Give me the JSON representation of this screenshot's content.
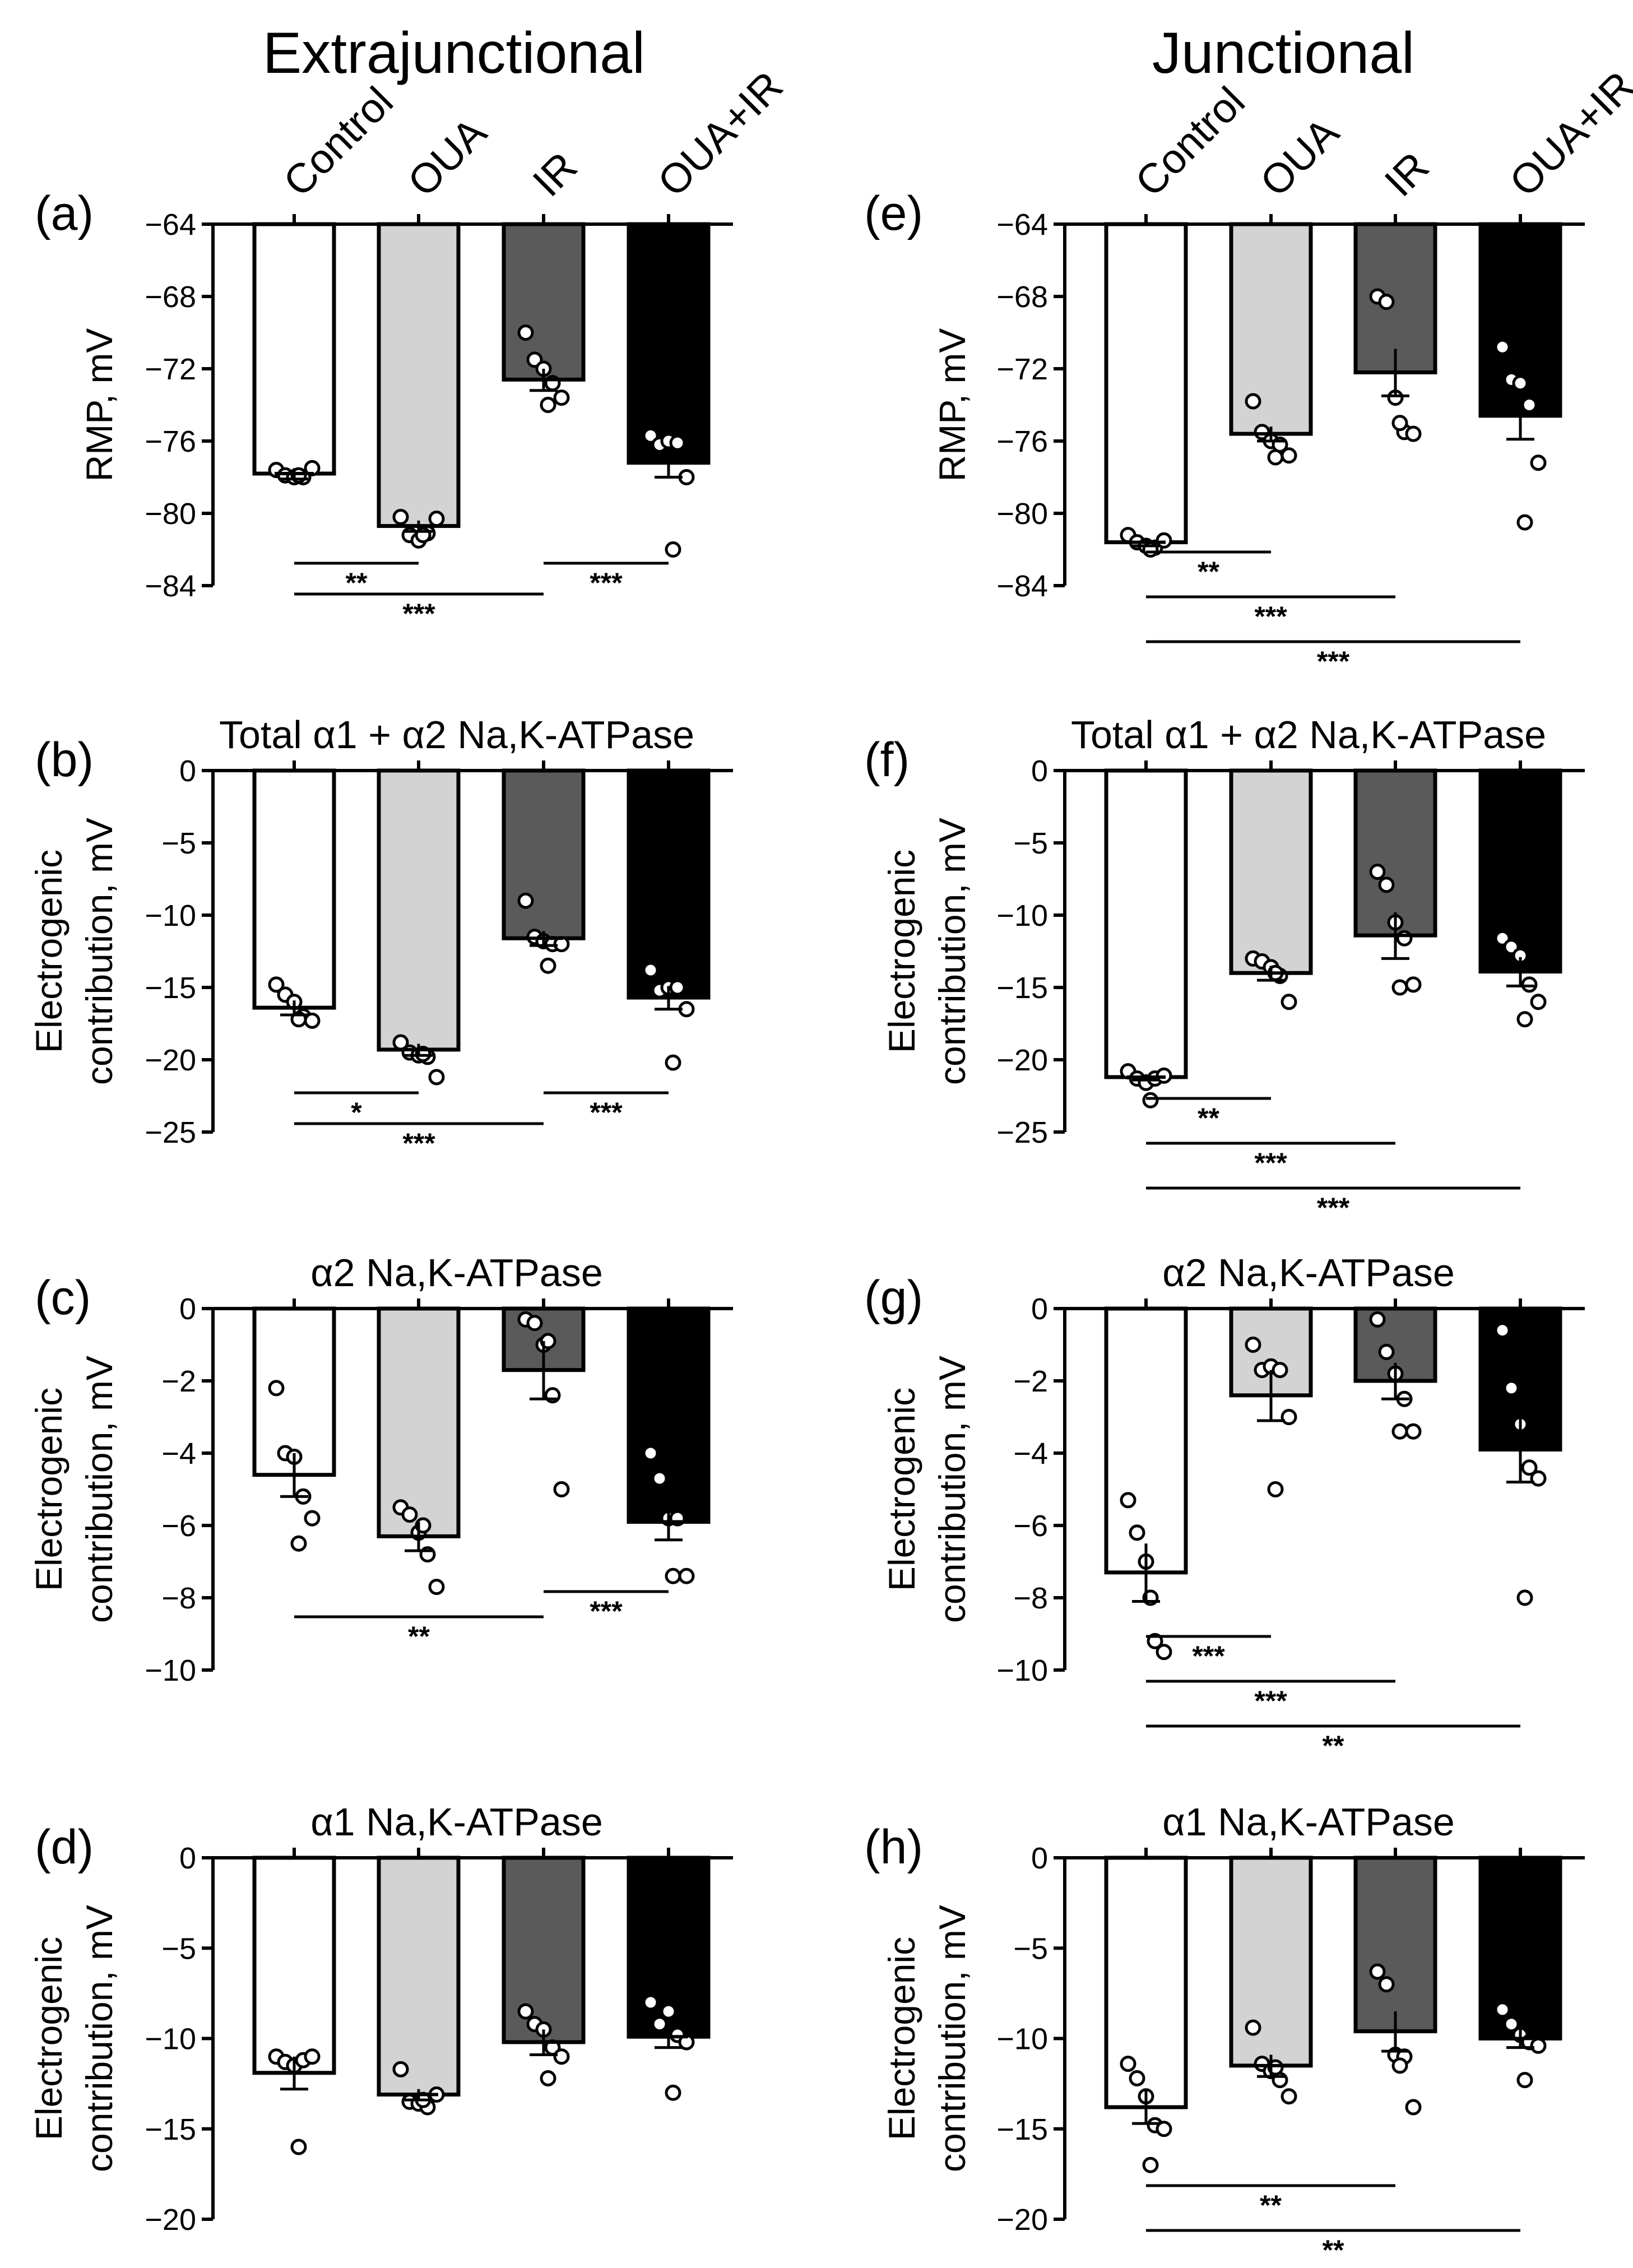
{
  "colors": {
    "Control": "#ffffff",
    "OUA": "#d3d3d3",
    "IR": "#5a5a5a",
    "OUA+IR": "#000000",
    "axis": "#000000"
  },
  "columns": [
    "Extrajunctional",
    "Junctional"
  ],
  "conditions": [
    "Control",
    "OUA",
    "IR",
    "OUA+IR"
  ],
  "chart_data": [
    {
      "id": "a",
      "letter": "(a)",
      "column": "Extrajunctional",
      "type": "bar",
      "title": "",
      "ylabel": [
        "RMP, mV"
      ],
      "ylim": [
        -84,
        -64
      ],
      "yticks": [
        -64,
        -68,
        -72,
        -76,
        -80,
        -84
      ],
      "categories": [
        "Control",
        "OUA",
        "IR",
        "OUA+IR"
      ],
      "values": [
        -77.8,
        -80.7,
        -72.6,
        -77.2
      ],
      "sem": [
        0.3,
        0.3,
        0.6,
        0.8
      ],
      "points": [
        [
          -77.6,
          -77.9,
          -78.0,
          -78.0,
          -77.5,
          -77.9
        ],
        [
          -80.2,
          -81.2,
          -81.5,
          -81.1,
          -80.3,
          -81.2
        ],
        [
          -70.0,
          -71.5,
          -72.0,
          -72.8,
          -73.6,
          -74.0
        ],
        [
          -75.7,
          -76.2,
          -76.0,
          -76.1,
          -78.0,
          -82.0
        ]
      ],
      "sig": [
        {
          "from": "Control",
          "to": "OUA",
          "label": "**"
        },
        {
          "from": "Control",
          "to": "IR",
          "label": "***"
        },
        {
          "from": "IR",
          "to": "OUA+IR",
          "label": "***"
        }
      ]
    },
    {
      "id": "b",
      "letter": "(b)",
      "column": "Extrajunctional",
      "type": "bar",
      "title": "Total α1 + α2 Na,K-ATPase",
      "ylabel": [
        "Electrogenic",
        "contribution, mV"
      ],
      "ylim": [
        -25,
        0
      ],
      "yticks": [
        0,
        -5,
        -10,
        -15,
        -20,
        -25
      ],
      "categories": [
        "Control",
        "OUA",
        "IR",
        "OUA+IR"
      ],
      "values": [
        -16.4,
        -19.3,
        -11.6,
        -15.7
      ],
      "sem": [
        0.5,
        0.4,
        0.5,
        0.8
      ],
      "points": [
        [
          -14.8,
          -15.5,
          -16.0,
          -17.0,
          -17.3,
          -17.2
        ],
        [
          -18.8,
          -19.5,
          -19.7,
          -19.8,
          -21.2,
          -19.6
        ],
        [
          -9.0,
          -11.5,
          -11.8,
          -12.0,
          -12.0,
          -13.5
        ],
        [
          -13.8,
          -15.2,
          -15.0,
          -15.0,
          -16.5,
          -20.2
        ]
      ],
      "sig": [
        {
          "from": "Control",
          "to": "OUA",
          "label": "*"
        },
        {
          "from": "Control",
          "to": "IR",
          "label": "***"
        },
        {
          "from": "IR",
          "to": "OUA+IR",
          "label": "***"
        }
      ]
    },
    {
      "id": "c",
      "letter": "(c)",
      "column": "Extrajunctional",
      "type": "bar",
      "title": "α2 Na,K-ATPase",
      "ylabel": [
        "Electrogenic",
        "contribution, mV"
      ],
      "ylim": [
        -10,
        0
      ],
      "yticks": [
        0,
        -2,
        -4,
        -6,
        -8,
        -10
      ],
      "categories": [
        "Control",
        "OUA",
        "IR",
        "OUA+IR"
      ],
      "values": [
        -4.6,
        -6.3,
        -1.7,
        -5.9
      ],
      "sem": [
        0.6,
        0.4,
        0.8,
        0.5
      ],
      "points": [
        [
          -2.2,
          -4.0,
          -4.1,
          -5.2,
          -5.8,
          -6.5
        ],
        [
          -5.5,
          -5.7,
          -6.2,
          -6.8,
          -7.7,
          -6.0
        ],
        [
          -0.3,
          -0.4,
          -1.0,
          -2.4,
          -5.0,
          -0.9
        ],
        [
          -4.0,
          -4.7,
          -5.8,
          -5.8,
          -7.4,
          -7.4
        ]
      ],
      "sig": [
        {
          "from": "Control",
          "to": "IR",
          "label": "**"
        },
        {
          "from": "IR",
          "to": "OUA+IR",
          "label": "***"
        }
      ]
    },
    {
      "id": "d",
      "letter": "(d)",
      "column": "Extrajunctional",
      "type": "bar",
      "title": "α1 Na,K-ATPase",
      "ylabel": [
        "Electrogenic",
        "contribution, mV"
      ],
      "ylim": [
        -20,
        0
      ],
      "yticks": [
        0,
        -5,
        -10,
        -15,
        -20
      ],
      "categories": [
        "Control",
        "OUA",
        "IR",
        "OUA+IR"
      ],
      "values": [
        -11.9,
        -13.1,
        -10.2,
        -9.9
      ],
      "sem": [
        0.9,
        0.3,
        0.7,
        0.6
      ],
      "points": [
        [
          -11.0,
          -11.3,
          -11.5,
          -11.2,
          -11.0,
          -16.0
        ],
        [
          -11.7,
          -13.5,
          -13.6,
          -13.8,
          -13.1,
          -13.4
        ],
        [
          -8.5,
          -9.2,
          -9.5,
          -10.5,
          -11.0,
          -12.2
        ],
        [
          -8.0,
          -9.2,
          -8.5,
          -9.8,
          -10.2,
          -13.0
        ]
      ],
      "sig": []
    },
    {
      "id": "e",
      "letter": "(e)",
      "column": "Junctional",
      "type": "bar",
      "title": "",
      "ylabel": [
        "RMP, mV"
      ],
      "ylim": [
        -84,
        -64
      ],
      "yticks": [
        -64,
        -68,
        -72,
        -76,
        -80,
        -84
      ],
      "categories": [
        "Control",
        "OUA",
        "IR",
        "OUA+IR"
      ],
      "values": [
        -81.6,
        -75.6,
        -72.2,
        -74.6
      ],
      "sem": [
        0.2,
        0.4,
        1.3,
        1.3
      ],
      "points": [
        [
          -81.2,
          -81.6,
          -81.8,
          -81.9,
          -81.5,
          -82.0
        ],
        [
          -73.8,
          -75.5,
          -76.0,
          -76.2,
          -76.8,
          -76.9
        ],
        [
          -68.0,
          -68.3,
          -73.6,
          -75.5,
          -75.6,
          -75.0
        ],
        [
          -70.8,
          -72.6,
          -72.8,
          -74.0,
          -77.2,
          -80.5
        ]
      ],
      "sig": [
        {
          "from": "Control",
          "to": "OUA",
          "label": "**"
        },
        {
          "from": "Control",
          "to": "IR",
          "label": "***"
        },
        {
          "from": "Control",
          "to": "OUA+IR",
          "label": "***"
        }
      ]
    },
    {
      "id": "f",
      "letter": "(f)",
      "column": "Junctional",
      "type": "bar",
      "title": "Total α1 + α2 Na,K-ATPase",
      "ylabel": [
        "Electrogenic",
        "contribution, mV"
      ],
      "ylim": [
        -25,
        0
      ],
      "yticks": [
        0,
        -5,
        -10,
        -15,
        -20,
        -25
      ],
      "categories": [
        "Control",
        "OUA",
        "IR",
        "OUA+IR"
      ],
      "values": [
        -21.2,
        -14.0,
        -11.4,
        -13.9
      ],
      "sem": [
        0.2,
        0.5,
        1.6,
        1.0
      ],
      "points": [
        [
          -20.8,
          -21.3,
          -21.6,
          -21.3,
          -21.1,
          -22.8
        ],
        [
          -13.0,
          -13.2,
          -13.6,
          -14.2,
          -16.0,
          -14.0
        ],
        [
          -7.0,
          -7.9,
          -10.5,
          -11.6,
          -14.8,
          -15.0
        ],
        [
          -11.6,
          -12.2,
          -12.8,
          -14.8,
          -16.0,
          -17.2
        ]
      ],
      "sig": [
        {
          "from": "Control",
          "to": "OUA",
          "label": "**"
        },
        {
          "from": "Control",
          "to": "IR",
          "label": "***"
        },
        {
          "from": "Control",
          "to": "OUA+IR",
          "label": "***"
        }
      ]
    },
    {
      "id": "g",
      "letter": "(g)",
      "column": "Junctional",
      "type": "bar",
      "title": "α2 Na,K-ATPase",
      "ylabel": [
        "Electrogenic",
        "contribution, mV"
      ],
      "ylim": [
        -10,
        0
      ],
      "yticks": [
        0,
        -2,
        -4,
        -6,
        -8,
        -10
      ],
      "categories": [
        "Control",
        "OUA",
        "IR",
        "OUA+IR"
      ],
      "values": [
        -7.3,
        -2.4,
        -2.0,
        -3.9
      ],
      "sem": [
        0.8,
        0.7,
        0.5,
        0.9
      ],
      "points": [
        [
          -5.3,
          -6.2,
          -7.0,
          -9.2,
          -9.5,
          -8.0
        ],
        [
          -1.0,
          -1.7,
          -1.6,
          -1.7,
          -3.0,
          -5.0
        ],
        [
          -0.3,
          -1.2,
          -1.8,
          -2.5,
          -3.4,
          -3.4
        ],
        [
          -0.6,
          -2.2,
          -3.2,
          -4.4,
          -4.7,
          -8.0
        ]
      ],
      "sig": [
        {
          "from": "Control",
          "to": "OUA",
          "label": "***"
        },
        {
          "from": "Control",
          "to": "IR",
          "label": "***"
        },
        {
          "from": "Control",
          "to": "OUA+IR",
          "label": "**"
        }
      ]
    },
    {
      "id": "h",
      "letter": "(h)",
      "column": "Junctional",
      "type": "bar",
      "title": "α1 Na,K-ATPase",
      "ylabel": [
        "Electrogenic",
        "contribution, mV"
      ],
      "ylim": [
        -20,
        0
      ],
      "yticks": [
        0,
        -5,
        -10,
        -15,
        -20
      ],
      "categories": [
        "Control",
        "OUA",
        "IR",
        "OUA+IR"
      ],
      "values": [
        -13.8,
        -11.5,
        -9.6,
        -10.0
      ],
      "sem": [
        0.9,
        0.6,
        1.1,
        0.5
      ],
      "points": [
        [
          -11.4,
          -12.2,
          -13.2,
          -14.8,
          -15.0,
          -17.0
        ],
        [
          -9.4,
          -11.4,
          -11.8,
          -12.3,
          -13.2,
          -11.6
        ],
        [
          -6.3,
          -7.0,
          -10.9,
          -11.0,
          -13.8,
          -11.5
        ],
        [
          -8.4,
          -9.2,
          -9.8,
          -10.2,
          -10.4,
          -12.3
        ]
      ],
      "sig": [
        {
          "from": "Control",
          "to": "IR",
          "label": "**"
        },
        {
          "from": "Control",
          "to": "OUA+IR",
          "label": "**"
        }
      ]
    }
  ]
}
